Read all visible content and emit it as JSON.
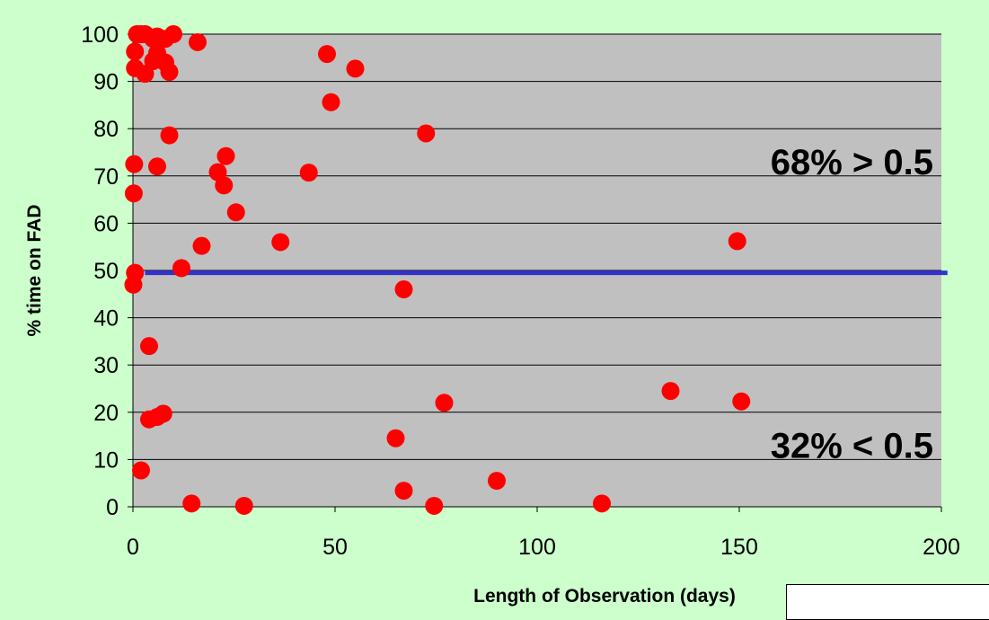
{
  "chart_data": {
    "type": "scatter",
    "title": "",
    "xlabel": "Length of Observation (days)",
    "ylabel": "% time on FAD",
    "xlim": [
      0,
      200
    ],
    "ylim": [
      0,
      100
    ],
    "x_ticks": [
      0,
      50,
      100,
      150,
      200
    ],
    "y_ticks": [
      0,
      10,
      20,
      30,
      40,
      50,
      60,
      70,
      80,
      90,
      100
    ],
    "grid": "horizontal",
    "colors": {
      "plot_background": "#c0c0c0",
      "page_background": "#ccffcc",
      "points": "#ff0000",
      "threshold_line": "#3333cc",
      "gridlines": "#000000"
    },
    "threshold_line": {
      "y": 49.5,
      "x_start": 3,
      "x_end": 201.5
    },
    "annotations": [
      {
        "text": "68% > 0.5",
        "x": 198,
        "y": 73
      },
      {
        "text": "32% < 0.5",
        "x": 198,
        "y": 13
      }
    ],
    "series": [
      {
        "points": [
          [
            0.1,
            47
          ],
          [
            0.2,
            66.3
          ],
          [
            0.3,
            72.5
          ],
          [
            0.5,
            49.5
          ],
          [
            0.5,
            96.3
          ],
          [
            0.5,
            92.8
          ],
          [
            1,
            100
          ],
          [
            2,
            100
          ],
          [
            3,
            100
          ],
          [
            3,
            91.6
          ],
          [
            5,
            99
          ],
          [
            6,
            99.5
          ],
          [
            6,
            96
          ],
          [
            5,
            94.3
          ],
          [
            7,
            99
          ],
          [
            8,
            99
          ],
          [
            8,
            94
          ],
          [
            9,
            92
          ],
          [
            10,
            100
          ],
          [
            9,
            78.6
          ],
          [
            6,
            72
          ],
          [
            4,
            34
          ],
          [
            4,
            18.5
          ],
          [
            6,
            19
          ],
          [
            7.5,
            19.7
          ],
          [
            2,
            7.7
          ],
          [
            12,
            50.5
          ],
          [
            14.5,
            0.7
          ],
          [
            16,
            98.3
          ],
          [
            17,
            55.2
          ],
          [
            21,
            70.8
          ],
          [
            23,
            74.2
          ],
          [
            22.5,
            68
          ],
          [
            25.5,
            62.3
          ],
          [
            27.5,
            0.2
          ],
          [
            36.5,
            56
          ],
          [
            43.5,
            70.7
          ],
          [
            48,
            95.8
          ],
          [
            49,
            85.6
          ],
          [
            55,
            92.7
          ],
          [
            65,
            14.5
          ],
          [
            67,
            3.4
          ],
          [
            67,
            46
          ],
          [
            72.5,
            79
          ],
          [
            74.5,
            0.2
          ],
          [
            77,
            22
          ],
          [
            90,
            5.5
          ],
          [
            116,
            0.7
          ],
          [
            133,
            24.5
          ],
          [
            149.5,
            56.2
          ],
          [
            150.5,
            22.3
          ]
        ]
      }
    ]
  }
}
